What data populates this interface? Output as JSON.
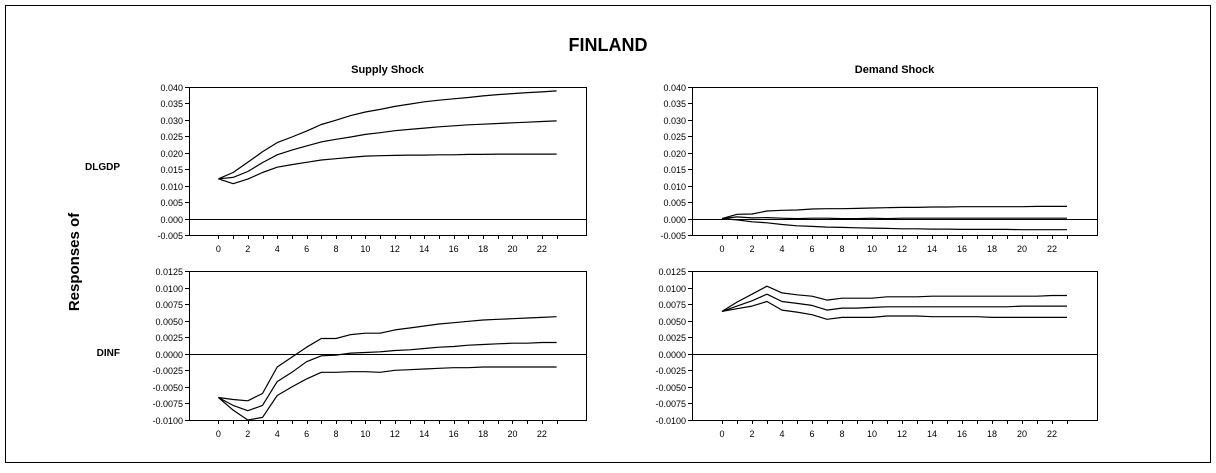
{
  "figure": {
    "title": "FINLAND",
    "responses_label": "Responses of",
    "colors": {
      "line": "#000000",
      "frame": "#000000",
      "background": "#ffffff"
    }
  },
  "chart_data": [
    {
      "type": "line",
      "title": "Supply Shock",
      "row_label": "DLGDP",
      "x": [
        0,
        1,
        2,
        3,
        4,
        5,
        6,
        7,
        8,
        9,
        10,
        11,
        12,
        13,
        14,
        15,
        16,
        17,
        18,
        19,
        20,
        21,
        22,
        23
      ],
      "xticks": [
        0,
        2,
        4,
        6,
        8,
        10,
        12,
        14,
        16,
        18,
        20,
        22
      ],
      "xlim": [
        -2,
        25
      ],
      "ylim": [
        -0.005,
        0.04
      ],
      "yticks": [
        -0.005,
        0.0,
        0.005,
        0.01,
        0.015,
        0.02,
        0.025,
        0.03,
        0.035,
        0.04
      ],
      "ytick_labels": [
        "-0.005",
        "0.000",
        "0.005",
        "0.010",
        "0.015",
        "0.020",
        "0.025",
        "0.030",
        "0.035",
        "0.040"
      ],
      "zero_line": true,
      "series": [
        {
          "values": [
            0.0121,
            0.014,
            0.0171,
            0.0203,
            0.0231,
            0.0248,
            0.0266,
            0.0286,
            0.0299,
            0.0313,
            0.0324,
            0.0332,
            0.0341,
            0.0348,
            0.0355,
            0.036,
            0.0364,
            0.0368,
            0.0373,
            0.0377,
            0.038,
            0.0383,
            0.0385,
            0.0388
          ]
        },
        {
          "values": [
            0.0121,
            0.0125,
            0.0143,
            0.017,
            0.0194,
            0.0208,
            0.0221,
            0.0233,
            0.0241,
            0.0248,
            0.0256,
            0.0261,
            0.0267,
            0.0271,
            0.0275,
            0.0279,
            0.0282,
            0.0285,
            0.0287,
            0.0289,
            0.0291,
            0.0293,
            0.0295,
            0.0297
          ]
        },
        {
          "values": [
            0.0121,
            0.0106,
            0.012,
            0.014,
            0.0156,
            0.0164,
            0.0171,
            0.0178,
            0.0182,
            0.0186,
            0.019,
            0.0191,
            0.0192,
            0.0193,
            0.0193,
            0.0194,
            0.0194,
            0.0195,
            0.0195,
            0.0196,
            0.0196,
            0.0196,
            0.0196,
            0.0196
          ]
        }
      ]
    },
    {
      "type": "line",
      "title": "Demand Shock",
      "row_label": "",
      "x": [
        0,
        1,
        2,
        3,
        4,
        5,
        6,
        7,
        8,
        9,
        10,
        11,
        12,
        13,
        14,
        15,
        16,
        17,
        18,
        19,
        20,
        21,
        22,
        23
      ],
      "xticks": [
        0,
        2,
        4,
        6,
        8,
        10,
        12,
        14,
        16,
        18,
        20,
        22
      ],
      "xlim": [
        -2,
        25
      ],
      "ylim": [
        -0.005,
        0.04
      ],
      "yticks": [
        -0.005,
        0.0,
        0.005,
        0.01,
        0.015,
        0.02,
        0.025,
        0.03,
        0.035,
        0.04
      ],
      "ytick_labels": [
        "-0.005",
        "0.000",
        "0.005",
        "0.010",
        "0.015",
        "0.020",
        "0.025",
        "0.030",
        "0.035",
        "0.040"
      ],
      "zero_line": true,
      "series": [
        {
          "values": [
            0.0,
            0.0013,
            0.0014,
            0.0023,
            0.0025,
            0.0026,
            0.0029,
            0.003,
            0.003,
            0.0031,
            0.0032,
            0.0033,
            0.0034,
            0.0034,
            0.0035,
            0.0035,
            0.0036,
            0.0036,
            0.0036,
            0.0036,
            0.0036,
            0.0037,
            0.0037,
            0.0037
          ]
        },
        {
          "values": [
            0.0,
            0.0005,
            0.0002,
            0.0003,
            0.0001,
            0.0,
            0.0001,
            0.0001,
            0.0,
            0.0,
            0.0001,
            0.0,
            0.0001,
            0.0001,
            0.0001,
            0.0001,
            0.0001,
            0.0001,
            0.0001,
            0.0001,
            0.0001,
            0.0001,
            0.0001,
            0.0001
          ]
        },
        {
          "values": [
            0.0,
            -0.0004,
            -0.001,
            -0.0013,
            -0.0018,
            -0.0022,
            -0.0024,
            -0.0026,
            -0.0027,
            -0.0028,
            -0.0029,
            -0.003,
            -0.0031,
            -0.0031,
            -0.0032,
            -0.0032,
            -0.0033,
            -0.0033,
            -0.0033,
            -0.0033,
            -0.0034,
            -0.0034,
            -0.0034,
            -0.0034
          ]
        }
      ]
    },
    {
      "type": "line",
      "title": "",
      "row_label": "DINF",
      "x": [
        0,
        1,
        2,
        3,
        4,
        5,
        6,
        7,
        8,
        9,
        10,
        11,
        12,
        13,
        14,
        15,
        16,
        17,
        18,
        19,
        20,
        21,
        22,
        23
      ],
      "xticks": [
        0,
        2,
        4,
        6,
        8,
        10,
        12,
        14,
        16,
        18,
        20,
        22
      ],
      "xlim": [
        -2,
        25
      ],
      "ylim": [
        -0.01,
        0.0125
      ],
      "yticks": [
        -0.01,
        -0.0075,
        -0.005,
        -0.0025,
        0.0,
        0.0025,
        0.005,
        0.0075,
        0.01,
        0.0125
      ],
      "ytick_labels": [
        "-0.0100",
        "-0.0075",
        "-0.0050",
        "-0.0025",
        "0.0000",
        "0.0025",
        "0.0050",
        "0.0075",
        "0.0100",
        "0.0125"
      ],
      "zero_line": true,
      "series": [
        {
          "values": [
            -0.0066,
            -0.0069,
            -0.0071,
            -0.006,
            -0.002,
            -0.0005,
            0.001,
            0.0023,
            0.0023,
            0.0029,
            0.0031,
            0.0031,
            0.0036,
            0.0039,
            0.0042,
            0.0045,
            0.0047,
            0.0049,
            0.0051,
            0.0052,
            0.0053,
            0.0054,
            0.0055,
            0.0056
          ]
        },
        {
          "values": [
            -0.0066,
            -0.0078,
            -0.0086,
            -0.0078,
            -0.0042,
            -0.0028,
            -0.0012,
            -0.0003,
            -0.0002,
            0.0001,
            0.0002,
            0.0003,
            0.0005,
            0.0006,
            0.0008,
            0.001,
            0.0011,
            0.0013,
            0.0014,
            0.0015,
            0.0016,
            0.0016,
            0.0017,
            0.0017
          ]
        },
        {
          "values": [
            -0.0066,
            -0.0085,
            -0.01,
            -0.0096,
            -0.0063,
            -0.005,
            -0.0038,
            -0.0028,
            -0.0028,
            -0.0027,
            -0.0027,
            -0.0028,
            -0.0025,
            -0.0024,
            -0.0023,
            -0.0022,
            -0.0021,
            -0.0021,
            -0.002,
            -0.002,
            -0.002,
            -0.002,
            -0.002,
            -0.002
          ]
        }
      ]
    },
    {
      "type": "line",
      "title": "",
      "row_label": "",
      "x": [
        0,
        1,
        2,
        3,
        4,
        5,
        6,
        7,
        8,
        9,
        10,
        11,
        12,
        13,
        14,
        15,
        16,
        17,
        18,
        19,
        20,
        21,
        22,
        23
      ],
      "xticks": [
        0,
        2,
        4,
        6,
        8,
        10,
        12,
        14,
        16,
        18,
        20,
        22
      ],
      "xlim": [
        -2,
        25
      ],
      "ylim": [
        -0.01,
        0.0125
      ],
      "yticks": [
        -0.01,
        -0.0075,
        -0.005,
        -0.0025,
        0.0,
        0.0025,
        0.005,
        0.0075,
        0.01,
        0.0125
      ],
      "ytick_labels": [
        "-0.0100",
        "-0.0075",
        "-0.0050",
        "-0.0025",
        "0.0000",
        "0.0025",
        "0.0050",
        "0.0075",
        "0.0100",
        "0.0125"
      ],
      "zero_line": true,
      "series": [
        {
          "values": [
            0.0064,
            0.0078,
            0.009,
            0.0102,
            0.0092,
            0.0089,
            0.0087,
            0.0081,
            0.0084,
            0.0084,
            0.0084,
            0.0086,
            0.0086,
            0.0086,
            0.0087,
            0.0087,
            0.0087,
            0.0087,
            0.0087,
            0.0087,
            0.0087,
            0.0087,
            0.0088,
            0.0088
          ]
        },
        {
          "values": [
            0.0064,
            0.0072,
            0.008,
            0.009,
            0.0079,
            0.0076,
            0.0073,
            0.0066,
            0.0069,
            0.0069,
            0.007,
            0.0071,
            0.0071,
            0.0071,
            0.0071,
            0.0071,
            0.0071,
            0.0071,
            0.0071,
            0.0071,
            0.0072,
            0.0072,
            0.0072,
            0.0072
          ]
        },
        {
          "values": [
            0.0064,
            0.0068,
            0.0072,
            0.0079,
            0.0066,
            0.0063,
            0.0059,
            0.0052,
            0.0055,
            0.0055,
            0.0055,
            0.0057,
            0.0057,
            0.0057,
            0.0056,
            0.0056,
            0.0056,
            0.0056,
            0.0055,
            0.0055,
            0.0055,
            0.0055,
            0.0055,
            0.0055
          ]
        }
      ]
    }
  ]
}
